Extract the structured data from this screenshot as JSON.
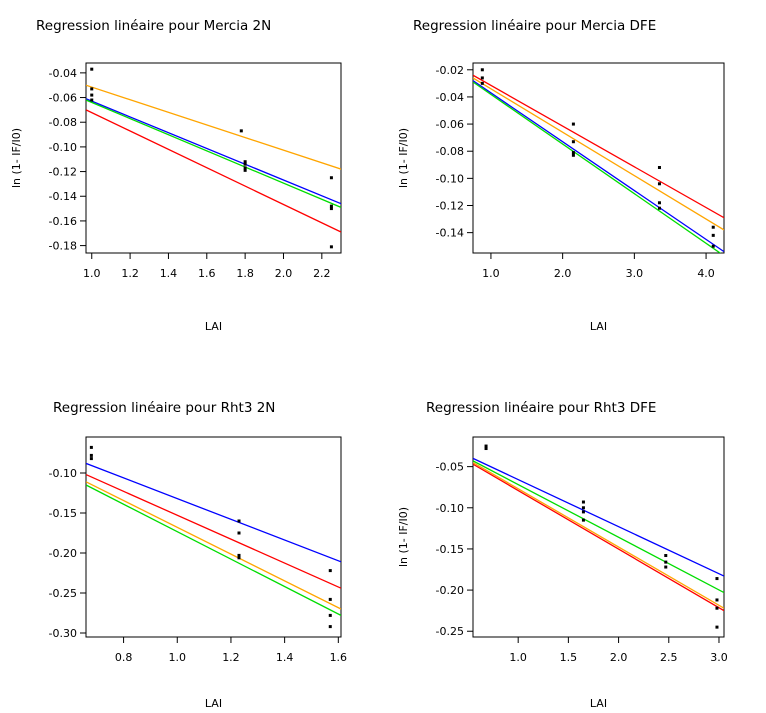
{
  "chart_data": [
    {
      "type": "scatter",
      "title": "Regression linéaire pour Mercia 2N",
      "xlabel": "LAI",
      "ylabel": "ln (1- IF/I0)",
      "xlim": [
        0.97,
        2.3
      ],
      "ylim": [
        -0.186,
        -0.032
      ],
      "xticks": [
        "1.0",
        "1.2",
        "1.4",
        "1.6",
        "1.8",
        "2.0",
        "2.2"
      ],
      "xtick_values": [
        1.0,
        1.2,
        1.4,
        1.6,
        1.8,
        2.0,
        2.2
      ],
      "yticks": [
        "-0.04",
        "-0.06",
        "-0.08",
        "-0.10",
        "-0.12",
        "-0.14",
        "-0.16",
        "-0.18"
      ],
      "ytick_values": [
        -0.04,
        -0.06,
        -0.08,
        -0.1,
        -0.12,
        -0.14,
        -0.16,
        -0.18
      ],
      "points": [
        [
          1.0,
          -0.037
        ],
        [
          1.0,
          -0.053
        ],
        [
          1.0,
          -0.058
        ],
        [
          1.0,
          -0.062
        ],
        [
          1.78,
          -0.087
        ],
        [
          1.8,
          -0.112
        ],
        [
          1.8,
          -0.114
        ],
        [
          1.8,
          -0.117
        ],
        [
          1.8,
          -0.119
        ],
        [
          2.25,
          -0.125
        ],
        [
          2.25,
          -0.148
        ],
        [
          2.25,
          -0.15
        ],
        [
          2.25,
          -0.181
        ]
      ],
      "lines": [
        {
          "color": "#ffa500",
          "x": [
            0.97,
            2.3
          ],
          "y": [
            -0.05,
            -0.118
          ]
        },
        {
          "color": "#0000ff",
          "x": [
            0.97,
            2.3
          ],
          "y": [
            -0.061,
            -0.146
          ]
        },
        {
          "color": "#00dd00",
          "x": [
            0.97,
            2.3
          ],
          "y": [
            -0.062,
            -0.149
          ]
        },
        {
          "color": "#ff0000",
          "x": [
            0.97,
            2.3
          ],
          "y": [
            -0.07,
            -0.169
          ]
        }
      ]
    },
    {
      "type": "scatter",
      "title": "Regression linéaire pour Mercia DFE",
      "xlabel": "LAI",
      "ylabel": "ln (1- IF/I0)",
      "xlim": [
        0.75,
        4.25
      ],
      "ylim": [
        -0.155,
        -0.015
      ],
      "xticks": [
        "1.0",
        "2.0",
        "3.0",
        "4.0"
      ],
      "xtick_values": [
        1.0,
        2.0,
        3.0,
        4.0
      ],
      "yticks": [
        "-0.02",
        "-0.04",
        "-0.06",
        "-0.08",
        "-0.10",
        "-0.12",
        "-0.14"
      ],
      "ytick_values": [
        -0.02,
        -0.04,
        -0.06,
        -0.08,
        -0.1,
        -0.12,
        -0.14
      ],
      "points": [
        [
          0.88,
          -0.02
        ],
        [
          0.88,
          -0.026
        ],
        [
          0.88,
          -0.03
        ],
        [
          2.15,
          -0.06
        ],
        [
          2.15,
          -0.073
        ],
        [
          2.15,
          -0.081
        ],
        [
          2.15,
          -0.083
        ],
        [
          3.35,
          -0.092
        ],
        [
          3.35,
          -0.104
        ],
        [
          3.35,
          -0.118
        ],
        [
          3.35,
          -0.122
        ],
        [
          4.1,
          -0.136
        ],
        [
          4.1,
          -0.142
        ],
        [
          4.1,
          -0.15
        ]
      ],
      "lines": [
        {
          "color": "#ff0000",
          "x": [
            0.75,
            4.25
          ],
          "y": [
            -0.024,
            -0.129
          ]
        },
        {
          "color": "#ffa500",
          "x": [
            0.75,
            4.25
          ],
          "y": [
            -0.026,
            -0.138
          ]
        },
        {
          "color": "#0000ff",
          "x": [
            0.75,
            4.25
          ],
          "y": [
            -0.028,
            -0.154
          ]
        },
        {
          "color": "#00dd00",
          "x": [
            0.75,
            4.25
          ],
          "y": [
            -0.029,
            -0.157
          ]
        }
      ]
    },
    {
      "type": "scatter",
      "title": "Regression linéaire pour Rht3 2N",
      "xlabel": "LAI",
      "ylabel": "",
      "xlim": [
        0.66,
        1.61
      ],
      "ylim": [
        -0.305,
        -0.055
      ],
      "xticks": [
        "0.8",
        "1.0",
        "1.2",
        "1.4",
        "1.6"
      ],
      "xtick_values": [
        0.8,
        1.0,
        1.2,
        1.4,
        1.6
      ],
      "yticks": [
        "-0.10",
        "-0.15",
        "-0.20",
        "-0.25",
        "-0.30"
      ],
      "ytick_values": [
        -0.1,
        -0.15,
        -0.2,
        -0.25,
        -0.3
      ],
      "points": [
        [
          0.68,
          -0.068
        ],
        [
          0.68,
          -0.078
        ],
        [
          0.68,
          -0.082
        ],
        [
          1.23,
          -0.16
        ],
        [
          1.23,
          -0.175
        ],
        [
          1.23,
          -0.203
        ],
        [
          1.23,
          -0.206
        ],
        [
          1.57,
          -0.222
        ],
        [
          1.57,
          -0.258
        ],
        [
          1.57,
          -0.278
        ],
        [
          1.57,
          -0.292
        ]
      ],
      "lines": [
        {
          "color": "#0000ff",
          "x": [
            0.66,
            1.61
          ],
          "y": [
            -0.088,
            -0.211
          ]
        },
        {
          "color": "#ff0000",
          "x": [
            0.66,
            1.61
          ],
          "y": [
            -0.102,
            -0.244
          ]
        },
        {
          "color": "#ffa500",
          "x": [
            0.66,
            1.61
          ],
          "y": [
            -0.111,
            -0.27
          ]
        },
        {
          "color": "#00dd00",
          "x": [
            0.66,
            1.61
          ],
          "y": [
            -0.115,
            -0.278
          ]
        }
      ]
    },
    {
      "type": "scatter",
      "title": "Regression linéaire pour Rht3 DFE",
      "xlabel": "LAI",
      "ylabel": "ln (1- IF/I0)",
      "xlim": [
        0.55,
        3.05
      ],
      "ylim": [
        -0.257,
        -0.014
      ],
      "xticks": [
        "1.0",
        "1.5",
        "2.0",
        "2.5",
        "3.0"
      ],
      "xtick_values": [
        1.0,
        1.5,
        2.0,
        2.5,
        3.0
      ],
      "yticks": [
        "-0.05",
        "-0.10",
        "-0.15",
        "-0.20",
        "-0.25"
      ],
      "ytick_values": [
        -0.05,
        -0.1,
        -0.15,
        -0.2,
        -0.25
      ],
      "points": [
        [
          0.68,
          -0.025
        ],
        [
          0.68,
          -0.028
        ],
        [
          1.65,
          -0.093
        ],
        [
          1.65,
          -0.1
        ],
        [
          1.65,
          -0.105
        ],
        [
          1.65,
          -0.115
        ],
        [
          2.47,
          -0.158
        ],
        [
          2.47,
          -0.166
        ],
        [
          2.47,
          -0.172
        ],
        [
          2.98,
          -0.186
        ],
        [
          2.98,
          -0.212
        ],
        [
          2.98,
          -0.222
        ],
        [
          2.98,
          -0.245
        ]
      ],
      "lines": [
        {
          "color": "#0000ff",
          "x": [
            0.55,
            3.05
          ],
          "y": [
            -0.04,
            -0.183
          ]
        },
        {
          "color": "#00dd00",
          "x": [
            0.55,
            3.05
          ],
          "y": [
            -0.043,
            -0.203
          ]
        },
        {
          "color": "#ffa500",
          "x": [
            0.55,
            3.05
          ],
          "y": [
            -0.045,
            -0.222
          ]
        },
        {
          "color": "#ff0000",
          "x": [
            0.55,
            3.05
          ],
          "y": [
            -0.047,
            -0.225
          ]
        }
      ]
    }
  ]
}
